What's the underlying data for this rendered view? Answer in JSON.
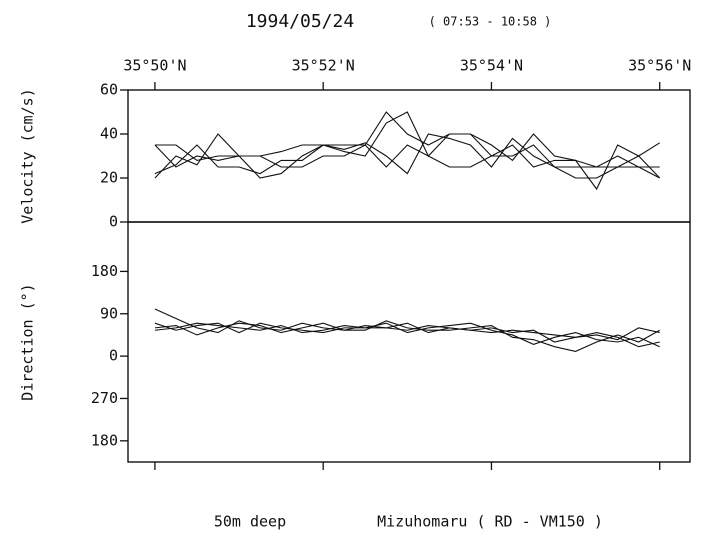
{
  "chart_data": [
    {
      "type": "line",
      "title": "1994/05/24",
      "subtitle": "( 07:53 - 10:58 )",
      "y_label": "Velocity (cm/s)",
      "x": [
        50,
        50.25,
        50.5,
        50.75,
        51,
        51.25,
        51.5,
        51.75,
        52,
        52.25,
        52.5,
        52.75,
        53,
        53.25,
        53.5,
        53.75,
        54,
        54.25,
        54.5,
        54.75,
        55,
        55.25,
        55.5,
        55.75,
        56
      ],
      "xlim": [
        49.68,
        56.36
      ],
      "xticks": [
        {
          "value": 50,
          "label": "35°50'N"
        },
        {
          "value": 52,
          "label": "35°52'N"
        },
        {
          "value": 54,
          "label": "35°54'N"
        },
        {
          "value": 56,
          "label": "35°56'N"
        }
      ],
      "ylim": [
        0,
        60
      ],
      "yticks": [
        0,
        20,
        40,
        60
      ],
      "series": [
        {
          "color": "#111111",
          "values": [
            20,
            30,
            26,
            40,
            30,
            20,
            22,
            30,
            35,
            35,
            35,
            50,
            40,
            35,
            40,
            40,
            30,
            30,
            35,
            25,
            25,
            25,
            30,
            25,
            20
          ]
        },
        {
          "color": "#111111",
          "values": [
            35,
            35,
            28,
            30,
            30,
            30,
            32,
            35,
            35,
            32,
            30,
            45,
            50,
            30,
            40,
            40,
            35,
            28,
            40,
            30,
            28,
            15,
            35,
            30,
            20
          ]
        },
        {
          "color": "#111111",
          "values": [
            22,
            26,
            35,
            25,
            25,
            22,
            28,
            28,
            35,
            33,
            36,
            30,
            22,
            40,
            38,
            35,
            25,
            38,
            30,
            25,
            20,
            20,
            25,
            30,
            36
          ]
        },
        {
          "color": "#111111",
          "values": [
            35,
            25,
            30,
            28,
            30,
            30,
            25,
            25,
            30,
            30,
            35,
            25,
            35,
            30,
            25,
            25,
            30,
            35,
            25,
            28,
            28,
            25,
            25,
            25,
            25
          ]
        }
      ]
    },
    {
      "type": "line",
      "y_label": "Direction (°)",
      "notes": [
        "50m deep",
        "Mizuhomaru ( RD - VM150 )"
      ],
      "x": [
        50,
        50.25,
        50.5,
        50.75,
        51,
        51.25,
        51.5,
        51.75,
        52,
        52.25,
        52.5,
        52.75,
        53,
        53.25,
        53.5,
        53.75,
        54,
        54.25,
        54.5,
        54.75,
        55,
        55.25,
        55.5,
        55.75,
        56
      ],
      "xlim": [
        49.68,
        56.36
      ],
      "xticks": [
        50,
        52,
        54,
        56
      ],
      "ylim": [
        -225,
        285
      ],
      "yticks": [
        180,
        90,
        0,
        {
          "value": -90,
          "label": "270"
        },
        {
          "value": -180,
          "label": "180"
        }
      ],
      "series": [
        {
          "color": "#111111",
          "values": [
            100,
            80,
            60,
            50,
            75,
            60,
            55,
            70,
            60,
            55,
            65,
            60,
            70,
            50,
            60,
            55,
            60,
            50,
            55,
            30,
            40,
            50,
            40,
            20,
            30
          ]
        },
        {
          "color": "#111111",
          "values": [
            70,
            55,
            65,
            70,
            50,
            70,
            60,
            55,
            50,
            60,
            60,
            70,
            50,
            60,
            65,
            70,
            55,
            45,
            25,
            40,
            50,
            35,
            30,
            40,
            20
          ]
        },
        {
          "color": "#111111",
          "values": [
            60,
            65,
            45,
            60,
            70,
            65,
            50,
            60,
            70,
            55,
            55,
            75,
            60,
            55,
            55,
            60,
            65,
            40,
            35,
            20,
            10,
            30,
            45,
            30,
            55
          ]
        },
        {
          "color": "#111111",
          "values": [
            55,
            60,
            70,
            65,
            60,
            55,
            65,
            50,
            55,
            65,
            60,
            60,
            55,
            65,
            60,
            55,
            50,
            55,
            50,
            45,
            40,
            45,
            35,
            60,
            50
          ]
        }
      ]
    }
  ]
}
